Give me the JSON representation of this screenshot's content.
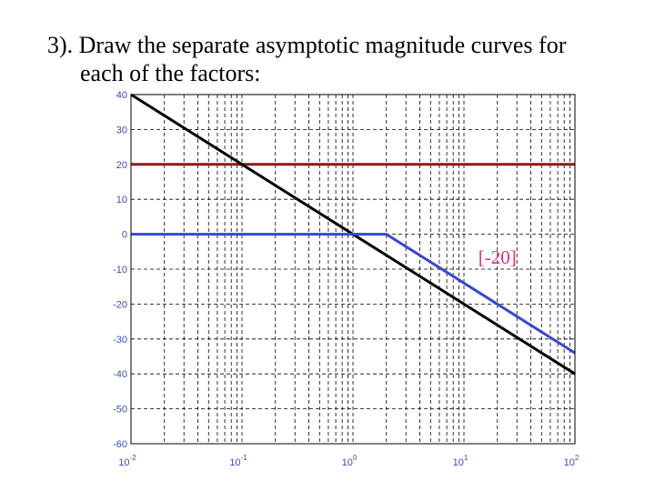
{
  "heading": {
    "line1": "3). Draw the separate asymptotic magnitude   curves for",
    "line2": "each of the factors:"
  },
  "chart_data": {
    "type": "line",
    "xscale": "log",
    "xlim": [
      0.01,
      100
    ],
    "ylim": [
      -60,
      40
    ],
    "grid": true,
    "x_ticks": [
      {
        "base": "10",
        "exp": "-2"
      },
      {
        "base": "10",
        "exp": "-1"
      },
      {
        "base": "10",
        "exp": "0"
      },
      {
        "base": "10",
        "exp": "1"
      },
      {
        "base": "10",
        "exp": "2"
      }
    ],
    "y_ticks": [
      "40",
      "30",
      "20",
      "10",
      "0",
      "-10",
      "-20",
      "-30",
      "-40",
      "-50",
      "-60"
    ],
    "series": [
      {
        "color": "#8b1a1a",
        "points": [
          [
            0.01,
            20
          ],
          [
            100,
            20
          ]
        ]
      },
      {
        "color": "#000000",
        "points": [
          [
            0.01,
            40
          ],
          [
            100,
            -40
          ]
        ]
      },
      {
        "color": "#3b48c8",
        "points": [
          [
            0.01,
            0
          ],
          [
            2,
            0
          ],
          [
            100,
            -34
          ]
        ]
      }
    ],
    "annotations": [
      {
        "text": "[-20]",
        "x": 20,
        "y": -8.5
      }
    ]
  }
}
